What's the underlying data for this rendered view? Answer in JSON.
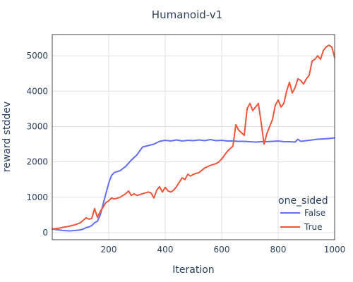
{
  "chart_data": {
    "type": "line",
    "title": "Humanoid-v1",
    "xlabel": "Iteration",
    "ylabel": "reward stddev",
    "xlim": [
      0,
      1000
    ],
    "ylim": [
      -200,
      5600
    ],
    "xticks": [
      200,
      400,
      600,
      800,
      1000
    ],
    "yticks": [
      0,
      1000,
      2000,
      3000,
      4000,
      5000
    ],
    "grid": true,
    "legend": {
      "title": "one_sided",
      "placement": "bottom-right"
    },
    "series": [
      {
        "name": "False",
        "color": "#636efa",
        "x": [
          0,
          20,
          40,
          60,
          80,
          100,
          110,
          120,
          130,
          140,
          150,
          160,
          170,
          180,
          190,
          200,
          210,
          220,
          240,
          260,
          280,
          300,
          320,
          340,
          360,
          380,
          400,
          420,
          440,
          460,
          480,
          500,
          520,
          540,
          560,
          580,
          600,
          620,
          640,
          660,
          680,
          700,
          720,
          740,
          760,
          780,
          800,
          820,
          840,
          860,
          870,
          880,
          900,
          920,
          940,
          960,
          980,
          1000
        ],
        "y": [
          100,
          80,
          60,
          50,
          60,
          80,
          100,
          140,
          160,
          200,
          280,
          320,
          500,
          800,
          1100,
          1400,
          1620,
          1700,
          1750,
          1870,
          2050,
          2200,
          2420,
          2460,
          2500,
          2580,
          2610,
          2590,
          2620,
          2590,
          2610,
          2600,
          2620,
          2600,
          2630,
          2600,
          2610,
          2590,
          2590,
          2580,
          2580,
          2570,
          2560,
          2570,
          2570,
          2580,
          2590,
          2570,
          2570,
          2560,
          2640,
          2580,
          2600,
          2620,
          2640,
          2650,
          2660,
          2680
        ]
      },
      {
        "name": "True",
        "color": "#ef553b",
        "x": [
          0,
          20,
          40,
          60,
          80,
          100,
          110,
          120,
          130,
          140,
          150,
          160,
          170,
          180,
          190,
          200,
          210,
          220,
          240,
          260,
          270,
          280,
          290,
          300,
          320,
          340,
          350,
          360,
          370,
          380,
          390,
          400,
          410,
          420,
          430,
          440,
          460,
          470,
          480,
          490,
          500,
          520,
          540,
          560,
          580,
          590,
          600,
          620,
          640,
          650,
          660,
          680,
          690,
          700,
          710,
          720,
          730,
          740,
          750,
          760,
          770,
          780,
          790,
          800,
          810,
          820,
          830,
          840,
          850,
          860,
          870,
          880,
          890,
          900,
          910,
          920,
          930,
          940,
          950,
          960,
          970,
          980,
          990,
          1000
        ],
        "y": [
          100,
          120,
          150,
          180,
          220,
          280,
          350,
          420,
          380,
          400,
          680,
          430,
          600,
          720,
          850,
          900,
          980,
          950,
          1000,
          1100,
          1180,
          1050,
          1100,
          1050,
          1100,
          1150,
          1120,
          980,
          1200,
          1300,
          1150,
          1280,
          1180,
          1150,
          1200,
          1300,
          1550,
          1500,
          1650,
          1600,
          1650,
          1700,
          1830,
          1900,
          1950,
          2000,
          2080,
          2300,
          2450,
          3050,
          2900,
          2750,
          3500,
          3650,
          3450,
          3550,
          3650,
          3100,
          2500,
          2800,
          3000,
          3200,
          3600,
          3750,
          3550,
          3650,
          4000,
          4250,
          3950,
          4100,
          4350,
          4300,
          4200,
          4350,
          4450,
          4850,
          4900,
          5000,
          4900,
          5150,
          5250,
          5300,
          5250,
          4950
        ]
      }
    ]
  }
}
